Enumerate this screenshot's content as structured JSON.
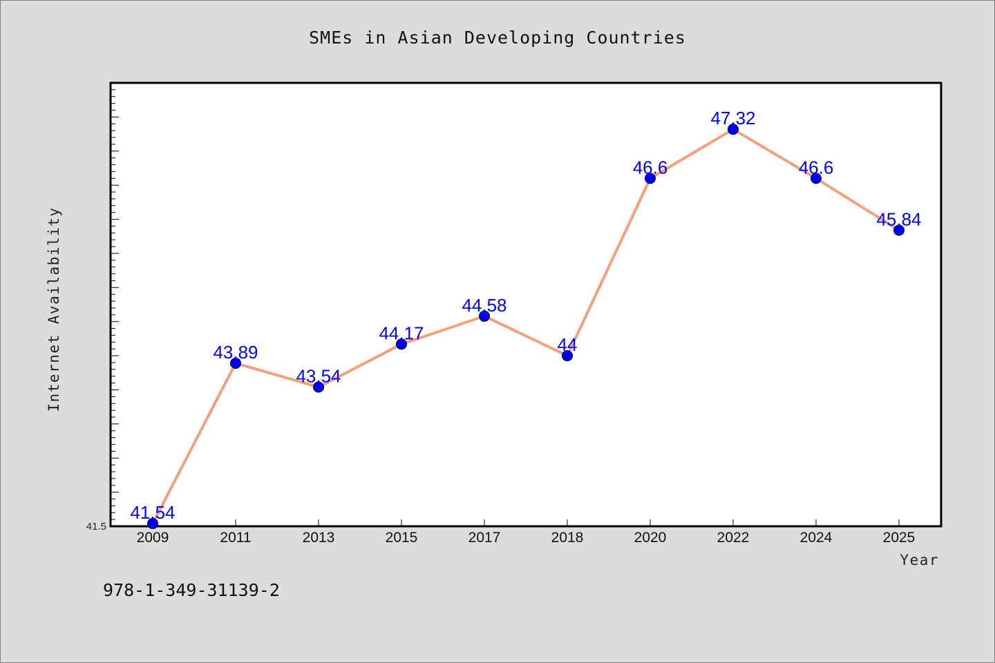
{
  "chart_data": {
    "type": "line",
    "title": "SMEs in Asian Developing Countries",
    "xlabel": "Year",
    "ylabel": "Internet Availability",
    "categories": [
      "2009",
      "2011",
      "2013",
      "2015",
      "2017",
      "2018",
      "2020",
      "2022",
      "2024",
      "2025"
    ],
    "series": [
      {
        "values": [
          41.54,
          43.89,
          43.54,
          44.17,
          44.58,
          44,
          46.6,
          47.32,
          46.6,
          45.84
        ],
        "data_labels": [
          "41.54",
          "43.89",
          "43.54",
          "44.17",
          "44.58",
          "44",
          "46.6",
          "47.32",
          "46.6",
          "45.84"
        ],
        "line_color": "#f4a07a",
        "marker_color": "#0000ee"
      }
    ],
    "ylim": [
      41.5,
      48
    ],
    "yticks_labeled": [
      "41.5"
    ],
    "grid": false,
    "legend": "none",
    "label_color": "#0000ff",
    "background_color": "#dcdcdc",
    "plot_background_color": "#ffffff"
  },
  "footnote": "978-1-349-31139-2"
}
